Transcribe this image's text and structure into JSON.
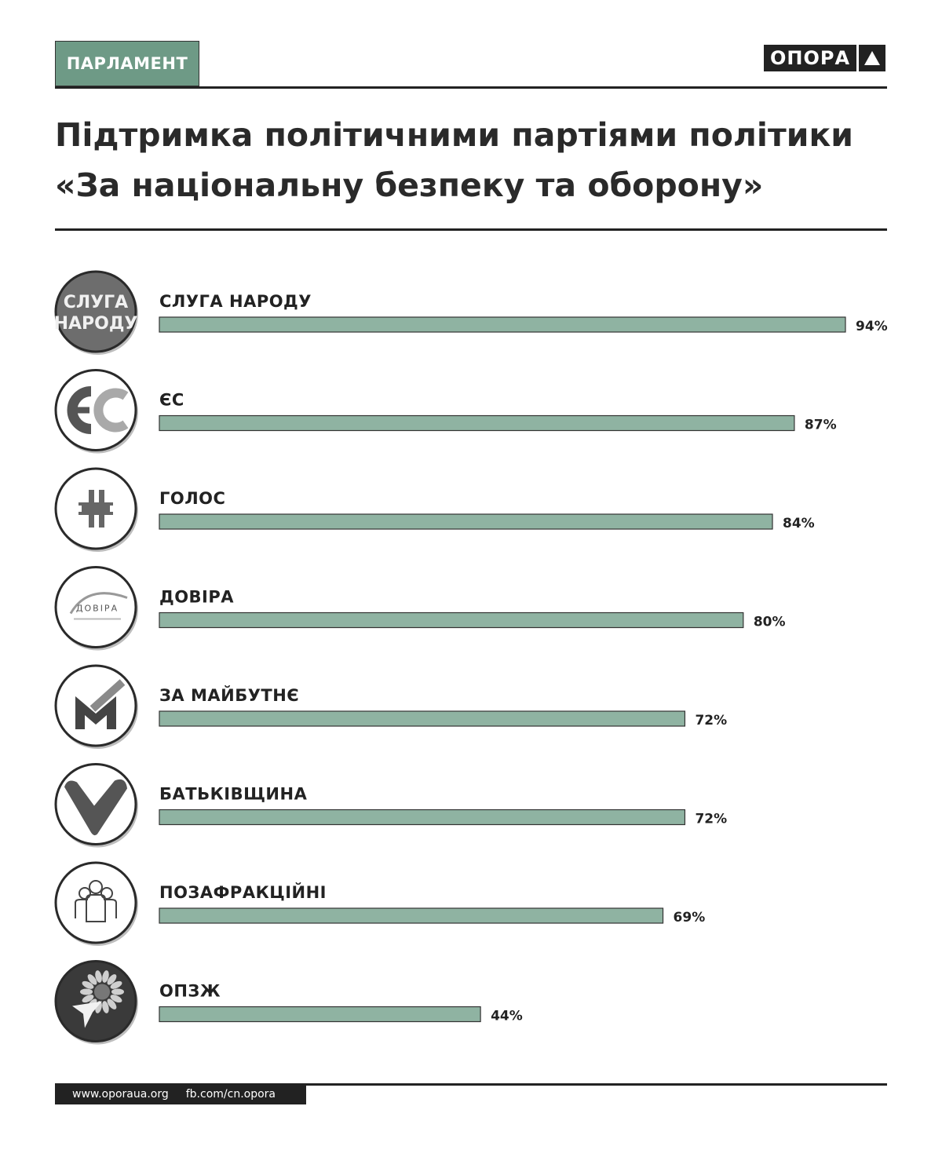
{
  "header": {
    "tag": "ПАРЛАМЕНТ",
    "brand": "ОПОРА"
  },
  "title_line1": "Підтримка політичними партіями політики",
  "title_line2": "«За національну безпеку та оборону»",
  "chart_data": {
    "type": "bar",
    "orientation": "horizontal",
    "value_suffix": "%",
    "xlim": [
      0,
      100
    ],
    "bar_color": "#8fb3a2",
    "categories": [
      "СЛУГА НАРОДУ",
      "ЄС",
      "ГОЛОС",
      "ДОВІРА",
      "ЗА МАЙБУТНЄ",
      "БАТЬКІВЩИНА",
      "ПОЗАФРАКЦІЙНІ",
      "ОПЗЖ"
    ],
    "values": [
      94,
      87,
      84,
      80,
      72,
      72,
      69,
      44
    ],
    "icons": [
      "sluha-narodu-logo",
      "es-logo",
      "holos-logo",
      "dovira-logo",
      "za-maibutnie-logo",
      "batkivshchyna-logo",
      "people-icon",
      "opzzh-logo"
    ],
    "logo_text": {
      "sluha_line1": "СЛУГА",
      "sluha_line2": "НАРОДУ",
      "dovira": "ДОВІРА"
    }
  },
  "footer": {
    "site": "www.oporaua.org",
    "fb": "fb.com/cn.opora"
  }
}
